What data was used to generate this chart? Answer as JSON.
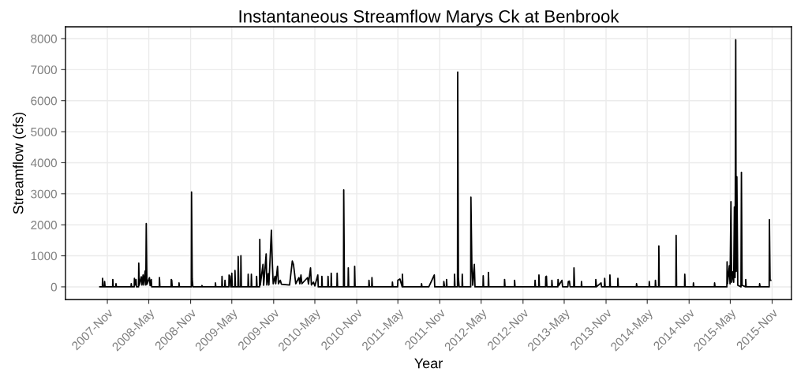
{
  "chart_data": {
    "type": "line",
    "title": "Instantaneous Streamflow Marys Ck at Benbrook",
    "xlabel": "Year",
    "ylabel": "Streamflow (cfs)",
    "series": [
      {
        "color": "#000000",
        "x": [
          "2007-09-29",
          "2007-10-10",
          "2007-10-11",
          "2007-10-13",
          "2007-10-19",
          "2007-10-20",
          "2007-10-22",
          "2007-11-24",
          "2007-11-25",
          "2007-11-27",
          "2007-12-08",
          "2007-12-09",
          "2007-12-11",
          "2008-02-13",
          "2008-02-14",
          "2008-02-16",
          "2008-02-27",
          "2008-02-28",
          "2008-03-02",
          "2008-03-06",
          "2008-03-08",
          "2008-03-17",
          "2008-03-18",
          "2008-03-20",
          "2008-03-29",
          "2008-04-01",
          "2008-04-06",
          "2008-04-09",
          "2008-04-15",
          "2008-04-18",
          "2008-04-20",
          "2008-04-23",
          "2008-05-04",
          "2008-05-07",
          "2008-05-12",
          "2008-05-14",
          "2008-06-16",
          "2008-06-17",
          "2008-06-19",
          "2008-08-07",
          "2008-08-08",
          "2008-08-10",
          "2008-08-12",
          "2008-09-10",
          "2008-09-11",
          "2008-09-13",
          "2008-11-04",
          "2008-11-05",
          "2008-11-08",
          "2008-11-11",
          "2008-12-20",
          "2008-12-21",
          "2008-12-23",
          "2009-02-17",
          "2009-02-18",
          "2009-02-20",
          "2009-03-18",
          "2009-03-19",
          "2009-03-21",
          "2009-03-31",
          "2009-04-01",
          "2009-04-03",
          "2009-04-18",
          "2009-04-19",
          "2009-04-23",
          "2009-04-26",
          "2009-04-30",
          "2009-05-01",
          "2009-05-03",
          "2009-05-14",
          "2009-05-15",
          "2009-05-17",
          "2009-05-28",
          "2009-05-29",
          "2009-06-01",
          "2009-06-09",
          "2009-06-10",
          "2009-06-12",
          "2009-07-11",
          "2009-07-12",
          "2009-07-14",
          "2009-07-25",
          "2009-07-26",
          "2009-07-28",
          "2009-08-17",
          "2009-08-18",
          "2009-08-20",
          "2009-08-31",
          "2009-09-01",
          "2009-09-03",
          "2009-09-15",
          "2009-09-18",
          "2009-09-29",
          "2009-10-02",
          "2009-10-08",
          "2009-10-11",
          "2009-10-22",
          "2009-10-26",
          "2009-10-30",
          "2009-11-07",
          "2009-11-10",
          "2009-11-18",
          "2009-11-22",
          "2009-11-30",
          "2009-12-05",
          "2010-01-10",
          "2010-01-22",
          "2010-01-27",
          "2010-02-01",
          "2010-02-06",
          "2010-02-20",
          "2010-02-24",
          "2010-03-01",
          "2010-03-05",
          "2010-03-30",
          "2010-04-03",
          "2010-04-08",
          "2010-04-12",
          "2010-04-16",
          "2010-04-25",
          "2010-05-01",
          "2010-05-14",
          "2010-05-16",
          "2010-05-31",
          "2010-06-01",
          "2010-06-03",
          "2010-06-27",
          "2010-06-28",
          "2010-06-30",
          "2010-07-11",
          "2010-07-12",
          "2010-07-14",
          "2010-08-06",
          "2010-08-07",
          "2010-08-09",
          "2010-09-04",
          "2010-09-05",
          "2010-09-08",
          "2010-09-24",
          "2010-09-25",
          "2010-09-27",
          "2010-10-22",
          "2010-10-23",
          "2010-10-25",
          "2010-12-24",
          "2010-12-25",
          "2010-12-27",
          "2011-01-06",
          "2011-01-07",
          "2011-01-09",
          "2011-04-06",
          "2011-04-07",
          "2011-04-09",
          "2011-04-30",
          "2011-05-01",
          "2011-05-10",
          "2011-05-20",
          "2011-05-21",
          "2011-05-23",
          "2011-08-12",
          "2011-08-13",
          "2011-08-15",
          "2011-09-14",
          "2011-10-08",
          "2011-10-10",
          "2011-11-18",
          "2011-11-19",
          "2011-11-22",
          "2011-11-30",
          "2011-12-01",
          "2011-12-03",
          "2012-01-04",
          "2012-01-05",
          "2012-01-07",
          "2012-01-18",
          "2012-01-19",
          "2012-01-22",
          "2012-01-25",
          "2012-02-07",
          "2012-02-08",
          "2012-02-10",
          "2012-03-16",
          "2012-03-17",
          "2012-03-21",
          "2012-03-25",
          "2012-04-01",
          "2012-04-04",
          "2012-05-09",
          "2012-05-10",
          "2012-05-12",
          "2012-06-01",
          "2012-06-02",
          "2012-06-04",
          "2012-08-11",
          "2012-08-12",
          "2012-08-14",
          "2012-09-24",
          "2012-09-25",
          "2012-09-27",
          "2012-12-23",
          "2012-12-24",
          "2012-12-26",
          "2013-01-09",
          "2013-01-10",
          "2013-01-12",
          "2013-02-08",
          "2013-02-09",
          "2013-02-12",
          "2013-02-14",
          "2013-03-07",
          "2013-03-08",
          "2013-03-10",
          "2013-04-03",
          "2013-04-04",
          "2013-04-07",
          "2013-04-21",
          "2013-04-24",
          "2013-05-17",
          "2013-05-19",
          "2013-05-24",
          "2013-05-27",
          "2013-06-12",
          "2013-06-13",
          "2013-06-16",
          "2013-07-15",
          "2013-07-16",
          "2013-07-18",
          "2013-09-16",
          "2013-09-17",
          "2013-09-20",
          "2013-10-10",
          "2013-10-12",
          "2013-10-25",
          "2013-10-26",
          "2013-10-28",
          "2013-11-17",
          "2013-11-18",
          "2013-11-20",
          "2013-12-22",
          "2013-12-23",
          "2013-12-25",
          "2014-03-14",
          "2014-03-15",
          "2014-03-17",
          "2014-05-09",
          "2014-05-10",
          "2014-05-12",
          "2014-06-05",
          "2014-06-06",
          "2014-06-08",
          "2014-06-20",
          "2014-06-21",
          "2014-06-23",
          "2014-09-04",
          "2014-09-05",
          "2014-09-07",
          "2014-10-12",
          "2014-10-13",
          "2014-10-15",
          "2014-11-19",
          "2014-11-20",
          "2014-11-22",
          "2015-02-20",
          "2015-02-21",
          "2015-02-23",
          "2015-04-16",
          "2015-04-17",
          "2015-04-19",
          "2015-04-27",
          "2015-04-30",
          "2015-05-04",
          "2015-05-07",
          "2015-05-13",
          "2015-05-16",
          "2015-05-19",
          "2015-05-22",
          "2015-05-25",
          "2015-05-27",
          "2015-05-30",
          "2015-06-03",
          "2015-06-17",
          "2015-06-19",
          "2015-06-22",
          "2015-07-07",
          "2015-07-08",
          "2015-07-10",
          "2015-09-06",
          "2015-09-07",
          "2015-09-09",
          "2015-10-19",
          "2015-10-20",
          "2015-10-23",
          "2015-10-26"
        ],
        "values": [
          0,
          0,
          272,
          0,
          0,
          170,
          0,
          0,
          238,
          0,
          0,
          100,
          0,
          0,
          100,
          0,
          0,
          272,
          60,
          238,
          0,
          0,
          764,
          50,
          323,
          60,
          382,
          60,
          509,
          60,
          2038,
          85,
          297,
          40,
          238,
          0,
          0,
          297,
          0,
          0,
          238,
          212,
          0,
          0,
          127,
          0,
          0,
          3056,
          255,
          0,
          0,
          42,
          0,
          0,
          127,
          0,
          0,
          340,
          0,
          0,
          212,
          0,
          0,
          382,
          340,
          0,
          0,
          441,
          0,
          0,
          526,
          0,
          0,
          976,
          0,
          0,
          1002,
          0,
          0,
          407,
          0,
          0,
          407,
          0,
          0,
          340,
          0,
          0,
          1528,
          50,
          722,
          50,
          1061,
          60,
          424,
          60,
          1825,
          764,
          100,
          340,
          100,
          662,
          100,
          212,
          85,
          60,
          832,
          722,
          424,
          100,
          297,
          100,
          382,
          100,
          297,
          90,
          382,
          611,
          60,
          150,
          30,
          382,
          0,
          0,
          340,
          0,
          0,
          340,
          0,
          0,
          441,
          0,
          0,
          441,
          0,
          0,
          3124,
          0,
          0,
          611,
          0,
          0,
          662,
          0,
          0,
          212,
          0,
          0,
          297,
          0,
          0,
          153,
          0,
          0,
          212,
          255,
          0,
          407,
          0,
          0,
          100,
          0,
          0,
          382,
          0,
          0,
          170,
          0,
          0,
          238,
          0,
          0,
          407,
          0,
          0,
          6919,
          297,
          0,
          0,
          407,
          0,
          0,
          2887,
          764,
          50,
          722,
          0,
          0,
          357,
          0,
          0,
          467,
          0,
          0,
          238,
          0,
          0,
          212,
          0,
          0,
          212,
          0,
          0,
          382,
          0,
          0,
          323,
          340,
          0,
          0,
          212,
          0,
          0,
          238,
          40,
          212,
          0,
          0,
          170,
          187,
          0,
          0,
          611,
          0,
          0,
          170,
          0,
          0,
          238,
          0,
          127,
          0,
          0,
          272,
          0,
          0,
          382,
          0,
          0,
          272,
          0,
          0,
          100,
          0,
          0,
          170,
          0,
          0,
          212,
          0,
          0,
          1316,
          0,
          0,
          1656,
          0,
          0,
          407,
          0,
          0,
          127,
          0,
          0,
          127,
          0,
          0,
          807,
          100,
          679,
          100,
          2742,
          150,
          492,
          150,
          2573,
          300,
          7964,
          500,
          3549,
          50,
          0,
          3693,
          50,
          0,
          238,
          0,
          0,
          100,
          0,
          0,
          2165,
          212,
          212
        ]
      }
    ],
    "xlim": [
      "2007-05-01",
      "2016-01-25"
    ],
    "ylim": [
      -408,
      8380
    ],
    "xticks": [
      {
        "value": "2007-11-01",
        "label": "2007-Nov"
      },
      {
        "value": "2008-05-01",
        "label": "2008-May"
      },
      {
        "value": "2008-11-01",
        "label": "2008-Nov"
      },
      {
        "value": "2009-05-01",
        "label": "2009-May"
      },
      {
        "value": "2009-11-01",
        "label": "2009-Nov"
      },
      {
        "value": "2010-05-01",
        "label": "2010-May"
      },
      {
        "value": "2010-11-01",
        "label": "2010-Nov"
      },
      {
        "value": "2011-05-01",
        "label": "2011-May"
      },
      {
        "value": "2011-11-01",
        "label": "2011-Nov"
      },
      {
        "value": "2012-05-01",
        "label": "2012-May"
      },
      {
        "value": "2012-11-01",
        "label": "2012-Nov"
      },
      {
        "value": "2013-05-01",
        "label": "2013-May"
      },
      {
        "value": "2013-11-01",
        "label": "2013-Nov"
      },
      {
        "value": "2014-05-01",
        "label": "2014-May"
      },
      {
        "value": "2014-11-01",
        "label": "2014-Nov"
      },
      {
        "value": "2015-05-01",
        "label": "2015-May"
      },
      {
        "value": "2015-11-01",
        "label": "2015-Nov"
      }
    ],
    "yticks": [
      0,
      1000,
      2000,
      3000,
      4000,
      5000,
      6000,
      7000,
      8000
    ],
    "grid": true
  }
}
